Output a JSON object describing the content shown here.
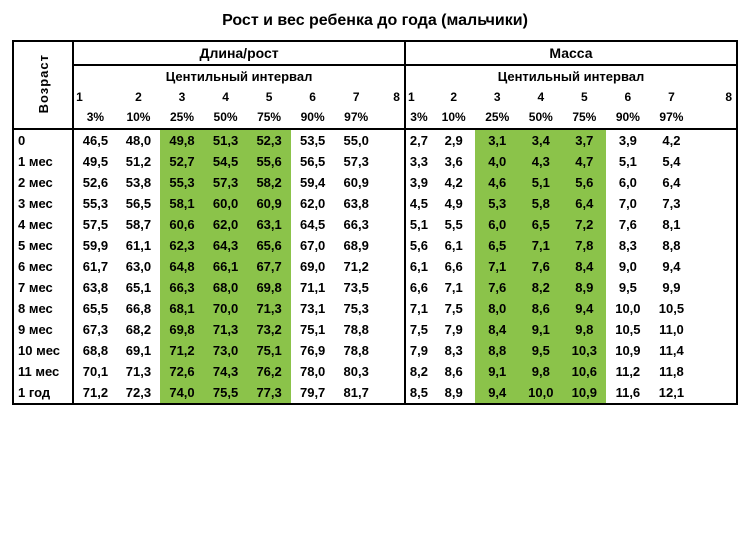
{
  "title": "Рост и вес ребенка до года (мальчики)",
  "headers": {
    "age": "Возраст",
    "length": "Длина/рост",
    "mass": "Масса",
    "centile": "Центильный интервал"
  },
  "centile_indices": [
    "1",
    "2",
    "3",
    "4",
    "5",
    "6",
    "7",
    "8"
  ],
  "centile_percents": [
    "3%",
    "10%",
    "25%",
    "50%",
    "75%",
    "90%",
    "97%"
  ],
  "highlight_color": "#8bc34a",
  "highlight_cols_length": [
    3,
    4,
    5
  ],
  "highlight_cols_mass": [
    3,
    4,
    5
  ],
  "rows": [
    {
      "age": "0",
      "len": [
        "46,5",
        "48,0",
        "49,8",
        "51,3",
        "52,3",
        "53,5",
        "55,0"
      ],
      "mass": [
        "2,7",
        "2,9",
        "3,1",
        "3,4",
        "3,7",
        "3,9",
        "4,2"
      ]
    },
    {
      "age": "1 мес",
      "len": [
        "49,5",
        "51,2",
        "52,7",
        "54,5",
        "55,6",
        "56,5",
        "57,3"
      ],
      "mass": [
        "3,3",
        "3,6",
        "4,0",
        "4,3",
        "4,7",
        "5,1",
        "5,4"
      ]
    },
    {
      "age": "2 мес",
      "len": [
        "52,6",
        "53,8",
        "55,3",
        "57,3",
        "58,2",
        "59,4",
        "60,9"
      ],
      "mass": [
        "3,9",
        "4,2",
        "4,6",
        "5,1",
        "5,6",
        "6,0",
        "6,4"
      ]
    },
    {
      "age": "3 мес",
      "len": [
        "55,3",
        "56,5",
        "58,1",
        "60,0",
        "60,9",
        "62,0",
        "63,8"
      ],
      "mass": [
        "4,5",
        "4,9",
        "5,3",
        "5,8",
        "6,4",
        "7,0",
        "7,3"
      ]
    },
    {
      "age": "4 мес",
      "len": [
        "57,5",
        "58,7",
        "60,6",
        "62,0",
        "63,1",
        "64,5",
        "66,3"
      ],
      "mass": [
        "5,1",
        "5,5",
        "6,0",
        "6,5",
        "7,2",
        "7,6",
        "8,1"
      ]
    },
    {
      "age": "5 мес",
      "len": [
        "59,9",
        "61,1",
        "62,3",
        "64,3",
        "65,6",
        "67,0",
        "68,9"
      ],
      "mass": [
        "5,6",
        "6,1",
        "6,5",
        "7,1",
        "7,8",
        "8,3",
        "8,8"
      ]
    },
    {
      "age": "6 мес",
      "len": [
        "61,7",
        "63,0",
        "64,8",
        "66,1",
        "67,7",
        "69,0",
        "71,2"
      ],
      "mass": [
        "6,1",
        "6,6",
        "7,1",
        "7,6",
        "8,4",
        "9,0",
        "9,4"
      ]
    },
    {
      "age": "7 мес",
      "len": [
        "63,8",
        "65,1",
        "66,3",
        "68,0",
        "69,8",
        "71,1",
        "73,5"
      ],
      "mass": [
        "6,6",
        "7,1",
        "7,6",
        "8,2",
        "8,9",
        "9,5",
        "9,9"
      ]
    },
    {
      "age": "8 мес",
      "len": [
        "65,5",
        "66,8",
        "68,1",
        "70,0",
        "71,3",
        "73,1",
        "75,3"
      ],
      "mass": [
        "7,1",
        "7,5",
        "8,0",
        "8,6",
        "9,4",
        "10,0",
        "10,5"
      ]
    },
    {
      "age": "9 мес",
      "len": [
        "67,3",
        "68,2",
        "69,8",
        "71,3",
        "73,2",
        "75,1",
        "78,8"
      ],
      "mass": [
        "7,5",
        "7,9",
        "8,4",
        "9,1",
        "9,8",
        "10,5",
        "11,0"
      ]
    },
    {
      "age": "10 мес",
      "len": [
        "68,8",
        "69,1",
        "71,2",
        "73,0",
        "75,1",
        "76,9",
        "78,8"
      ],
      "mass": [
        "7,9",
        "8,3",
        "8,8",
        "9,5",
        "10,3",
        "10,9",
        "11,4"
      ]
    },
    {
      "age": "11 мес",
      "len": [
        "70,1",
        "71,3",
        "72,6",
        "74,3",
        "76,2",
        "78,0",
        "80,3"
      ],
      "mass": [
        "8,2",
        "8,6",
        "9,1",
        "9,8",
        "10,6",
        "11,2",
        "11,8"
      ]
    },
    {
      "age": "1 год",
      "len": [
        "71,2",
        "72,3",
        "74,0",
        "75,5",
        "77,3",
        "79,7",
        "81,7"
      ],
      "mass": [
        "8,5",
        "8,9",
        "9,4",
        "10,0",
        "10,9",
        "11,6",
        "12,1"
      ]
    }
  ]
}
